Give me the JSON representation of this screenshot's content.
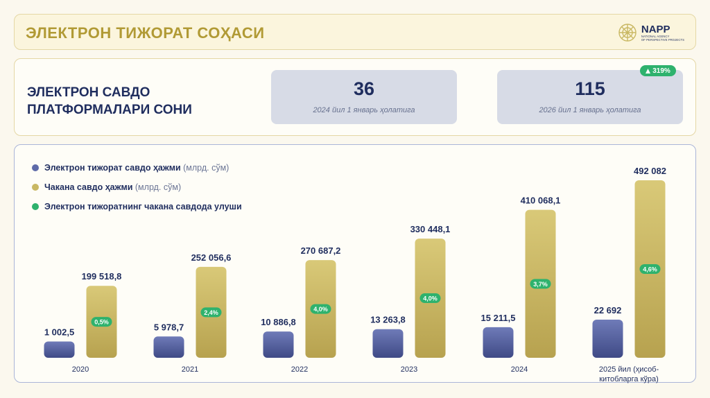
{
  "header": {
    "title": "ЭЛЕКТРОН ТИЖОРАТ СОҲАСИ",
    "logo_name": "NAPP",
    "logo_sub_1": "NATIONAL AGENCY",
    "logo_sub_2": "OF PERSPECTIVE PROJECTS"
  },
  "platforms": {
    "title": "ЭЛЕКТРОН САВДО ПЛАТФОРМАЛАРИ СОНИ",
    "cards": [
      {
        "value": "36",
        "caption": "2024 йил 1 январь ҳолатига"
      },
      {
        "value": "115",
        "caption": "2026 йил 1 январь ҳолатига"
      }
    ],
    "growth": "319%"
  },
  "colors": {
    "ecommerce": "#5e6aa8",
    "retail": "#c9b863",
    "share": "#2eb26d",
    "navy": "#1f2d5e"
  },
  "chart_data": {
    "type": "bar",
    "categories": [
      "2020",
      "2021",
      "2022",
      "2023",
      "2024",
      "2025 йил (ҳисоб-китобларга кўра)"
    ],
    "category_lines": [
      [
        "2020"
      ],
      [
        "2021"
      ],
      [
        "2022"
      ],
      [
        "2023"
      ],
      [
        "2024"
      ],
      [
        "2025 йил (ҳисоб-",
        "китобларга кўра)"
      ]
    ],
    "series": [
      {
        "name": "Электрон тижорат савдо ҳажми",
        "unit": "(млрд. сўм)",
        "values": [
          1002.5,
          5978.7,
          10886.8,
          13263.8,
          15211.5,
          22692
        ],
        "labels": [
          "1 002,5",
          "5 978,7",
          "10 886,8",
          "13 263,8",
          "15 211,5",
          "22 692"
        ]
      },
      {
        "name": "Чакана савдо ҳажми",
        "unit": "(млрд. сўм)",
        "values": [
          199518.8,
          252056.6,
          270687.2,
          330448.1,
          410068.1,
          492082
        ],
        "labels": [
          "199 518,8",
          "252 056,6",
          "270 687,2",
          "330 448,1",
          "410 068,1",
          "492 082"
        ]
      },
      {
        "name": "Электрон тижоратнинг чакана савдода улуши",
        "unit": "",
        "values": [
          0.5,
          2.4,
          4.0,
          4.0,
          3.7,
          4.6
        ],
        "labels": [
          "0,5%",
          "2,4%",
          "4,0%",
          "4,0%",
          "3,7%",
          "4,6%"
        ]
      }
    ]
  }
}
